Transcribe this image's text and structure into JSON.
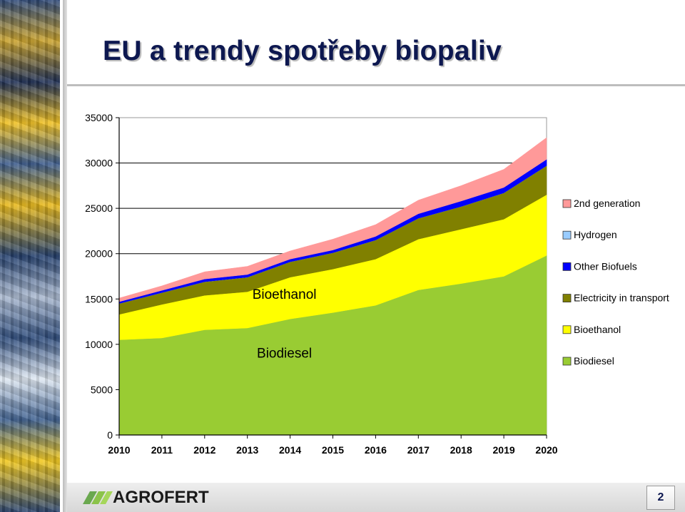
{
  "slide": {
    "title": "EU a trendy spotřeby biopaliv",
    "logo_text": "AGROFERT",
    "page_number": "2"
  },
  "colors": {
    "title": "#0d1850",
    "biodiesel": "#99cc33",
    "bioethanol": "#ffff00",
    "electricity": "#808000",
    "other_biofuels": "#0000ff",
    "hydrogen": "#99ccff",
    "second_generation": "#ff9999"
  },
  "chart_data": {
    "type": "area",
    "stacked": true,
    "x": [
      "2010",
      "2011",
      "2012",
      "2013",
      "2014",
      "2015",
      "2016",
      "2017",
      "2018",
      "2019",
      "2020"
    ],
    "ylim": [
      0,
      35000
    ],
    "yticks": [
      "0",
      "5000",
      "10000",
      "15000",
      "20000",
      "25000",
      "30000",
      "35000"
    ],
    "grid": "horizontal",
    "legend": "right",
    "series": [
      {
        "name": "Biodiesel",
        "color": "#99cc33",
        "values": [
          10500,
          10700,
          11600,
          11800,
          12800,
          13500,
          14300,
          16000,
          16700,
          17500,
          19800
        ]
      },
      {
        "name": "Bioethanol",
        "color": "#ffff00",
        "values": [
          2800,
          3700,
          3800,
          4000,
          4600,
          4800,
          5100,
          5600,
          6000,
          6300,
          6700
        ]
      },
      {
        "name": "Electricity in transport",
        "color": "#808000",
        "values": [
          1200,
          1300,
          1500,
          1600,
          1700,
          1800,
          2100,
          2300,
          2500,
          2900,
          3200
        ]
      },
      {
        "name": "Hydrogen",
        "color": "#99ccff",
        "values": [
          0,
          0,
          0,
          0,
          0,
          0,
          0,
          0,
          0,
          0,
          0
        ]
      },
      {
        "name": "Other Biofuels",
        "color": "#0000ff",
        "values": [
          200,
          250,
          300,
          300,
          300,
          300,
          400,
          500,
          600,
          600,
          700
        ]
      },
      {
        "name": "2nd generation",
        "color": "#ff9999",
        "values": [
          400,
          500,
          800,
          900,
          900,
          1200,
          1300,
          1500,
          1700,
          2000,
          2400
        ]
      }
    ],
    "legend_order": [
      "2nd generation",
      "Hydrogen",
      "Other Biofuels",
      "Electricity in transport",
      "Bioethanol",
      "Biodiesel"
    ],
    "annotations": [
      {
        "text": "Bioethanol",
        "x": "2014",
        "y": 15500
      },
      {
        "text": "Biodiesel",
        "x": "2014",
        "y": 9000
      }
    ]
  }
}
